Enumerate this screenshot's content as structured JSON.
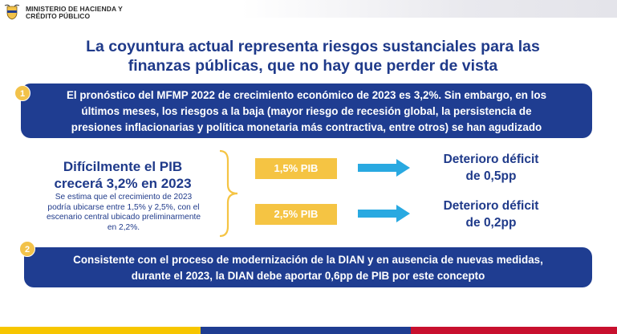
{
  "header": {
    "org_line1": "MINISTERIO DE HACIENDA Y",
    "org_line2": "CRÉDITO PÚBLICO",
    "logo_icon": "coat-of-arms-icon"
  },
  "title": {
    "line1": "La coyuntura actual representa riesgos sustanciales para las",
    "line2": "finanzas públicas, que no hay que perder de vista"
  },
  "point1": {
    "number": "1",
    "line1": "El pronóstico del MFMP 2022 de crecimiento económico de 2023 es 3,2%. Sin embargo, en los",
    "line2": "últimos meses, los riesgos a la baja (mayor riesgo de recesión global, la persistencia de",
    "line3": "presiones inflacionarias y política monetaria más contractiva, entre otros) se han agudizado"
  },
  "growth": {
    "headline1": "Difícilmente el PIB",
    "headline2": "crecerá 3,2% en 2023",
    "note1": "Se estima que el crecimiento de 2023",
    "note2": "podría ubicarse entre 1,5% y 2,5%, con el",
    "note3": "escenario central ubicado preliminarmente",
    "note4": "en 2,2%."
  },
  "scenarios": [
    {
      "pib": "1,5% PIB",
      "result1": "Deterioro déficit",
      "result2": "de 0,5pp"
    },
    {
      "pib": "2,5% PIB",
      "result1": "Deterioro déficit",
      "result2": "de 0,2pp"
    }
  ],
  "point2": {
    "number": "2",
    "line1": "Consistente con el proceso de modernización de la DIAN y en ausencia de nuevas medidas,",
    "line2": "durante el 2023, la DIAN debe aportar 0,6pp de PIB por este concepto"
  },
  "colors": {
    "brand_blue": "#1f3d91",
    "title_blue": "#1f3a8a",
    "accent_yellow": "#f5c443",
    "arrow_cyan": "#29a9e1",
    "flag_yellow": "#f7c600",
    "flag_blue": "#1f3d91",
    "flag_red": "#c8102e"
  }
}
